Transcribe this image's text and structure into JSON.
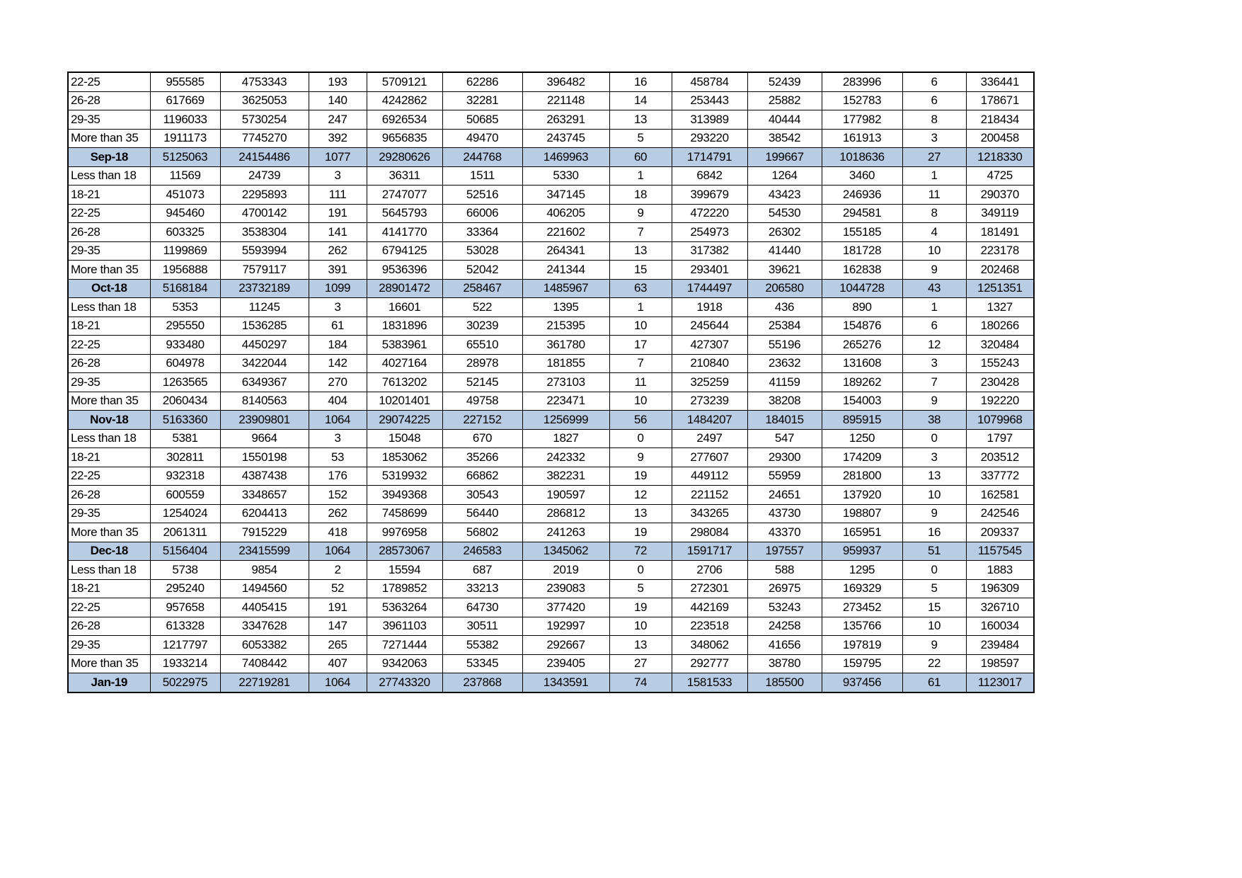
{
  "colors": {
    "month_row_fill": "#b8cce4",
    "border": "#000000"
  },
  "rows": [
    {
      "type": "age",
      "cells": [
        "22-25",
        "955585",
        "4753343",
        "193",
        "5709121",
        "62286",
        "396482",
        "16",
        "458784",
        "52439",
        "283996",
        "6",
        "336441"
      ]
    },
    {
      "type": "age",
      "cells": [
        "26-28",
        "617669",
        "3625053",
        "140",
        "4242862",
        "32281",
        "221148",
        "14",
        "253443",
        "25882",
        "152783",
        "6",
        "178671"
      ]
    },
    {
      "type": "age",
      "cells": [
        "29-35",
        "1196033",
        "5730254",
        "247",
        "6926534",
        "50685",
        "263291",
        "13",
        "313989",
        "40444",
        "177982",
        "8",
        "218434"
      ]
    },
    {
      "type": "age",
      "cells": [
        "More than 35",
        "1911173",
        "7745270",
        "392",
        "9656835",
        "49470",
        "243745",
        "5",
        "293220",
        "38542",
        "161913",
        "3",
        "200458"
      ]
    },
    {
      "type": "month",
      "cells": [
        "Sep-18",
        "5125063",
        "24154486",
        "1077",
        "29280626",
        "244768",
        "1469963",
        "60",
        "1714791",
        "199667",
        "1018636",
        "27",
        "1218330"
      ]
    },
    {
      "type": "age",
      "cells": [
        "Less than 18",
        "11569",
        "24739",
        "3",
        "36311",
        "1511",
        "5330",
        "1",
        "6842",
        "1264",
        "3460",
        "1",
        "4725"
      ]
    },
    {
      "type": "age",
      "cells": [
        "18-21",
        "451073",
        "2295893",
        "111",
        "2747077",
        "52516",
        "347145",
        "18",
        "399679",
        "43423",
        "246936",
        "11",
        "290370"
      ]
    },
    {
      "type": "age",
      "cells": [
        "22-25",
        "945460",
        "4700142",
        "191",
        "5645793",
        "66006",
        "406205",
        "9",
        "472220",
        "54530",
        "294581",
        "8",
        "349119"
      ]
    },
    {
      "type": "age",
      "cells": [
        "26-28",
        "603325",
        "3538304",
        "141",
        "4141770",
        "33364",
        "221602",
        "7",
        "254973",
        "26302",
        "155185",
        "4",
        "181491"
      ]
    },
    {
      "type": "age",
      "cells": [
        "29-35",
        "1199869",
        "5593994",
        "262",
        "6794125",
        "53028",
        "264341",
        "13",
        "317382",
        "41440",
        "181728",
        "10",
        "223178"
      ]
    },
    {
      "type": "age",
      "cells": [
        "More than 35",
        "1956888",
        "7579117",
        "391",
        "9536396",
        "52042",
        "241344",
        "15",
        "293401",
        "39621",
        "162838",
        "9",
        "202468"
      ]
    },
    {
      "type": "month",
      "cells": [
        "Oct-18",
        "5168184",
        "23732189",
        "1099",
        "28901472",
        "258467",
        "1485967",
        "63",
        "1744497",
        "206580",
        "1044728",
        "43",
        "1251351"
      ]
    },
    {
      "type": "age",
      "cells": [
        "Less than 18",
        "5353",
        "11245",
        "3",
        "16601",
        "522",
        "1395",
        "1",
        "1918",
        "436",
        "890",
        "1",
        "1327"
      ]
    },
    {
      "type": "age",
      "cells": [
        "18-21",
        "295550",
        "1536285",
        "61",
        "1831896",
        "30239",
        "215395",
        "10",
        "245644",
        "25384",
        "154876",
        "6",
        "180266"
      ]
    },
    {
      "type": "age",
      "cells": [
        "22-25",
        "933480",
        "4450297",
        "184",
        "5383961",
        "65510",
        "361780",
        "17",
        "427307",
        "55196",
        "265276",
        "12",
        "320484"
      ]
    },
    {
      "type": "age",
      "cells": [
        "26-28",
        "604978",
        "3422044",
        "142",
        "4027164",
        "28978",
        "181855",
        "7",
        "210840",
        "23632",
        "131608",
        "3",
        "155243"
      ]
    },
    {
      "type": "age",
      "cells": [
        "29-35",
        "1263565",
        "6349367",
        "270",
        "7613202",
        "52145",
        "273103",
        "11",
        "325259",
        "41159",
        "189262",
        "7",
        "230428"
      ]
    },
    {
      "type": "age",
      "cells": [
        "More than 35",
        "2060434",
        "8140563",
        "404",
        "10201401",
        "49758",
        "223471",
        "10",
        "273239",
        "38208",
        "154003",
        "9",
        "192220"
      ]
    },
    {
      "type": "month",
      "cells": [
        "Nov-18",
        "5163360",
        "23909801",
        "1064",
        "29074225",
        "227152",
        "1256999",
        "56",
        "1484207",
        "184015",
        "895915",
        "38",
        "1079968"
      ]
    },
    {
      "type": "age",
      "cells": [
        "Less than 18",
        "5381",
        "9664",
        "3",
        "15048",
        "670",
        "1827",
        "0",
        "2497",
        "547",
        "1250",
        "0",
        "1797"
      ]
    },
    {
      "type": "age",
      "cells": [
        "18-21",
        "302811",
        "1550198",
        "53",
        "1853062",
        "35266",
        "242332",
        "9",
        "277607",
        "29300",
        "174209",
        "3",
        "203512"
      ]
    },
    {
      "type": "age",
      "cells": [
        "22-25",
        "932318",
        "4387438",
        "176",
        "5319932",
        "66862",
        "382231",
        "19",
        "449112",
        "55959",
        "281800",
        "13",
        "337772"
      ]
    },
    {
      "type": "age",
      "cells": [
        "26-28",
        "600559",
        "3348657",
        "152",
        "3949368",
        "30543",
        "190597",
        "12",
        "221152",
        "24651",
        "137920",
        "10",
        "162581"
      ]
    },
    {
      "type": "age",
      "cells": [
        "29-35",
        "1254024",
        "6204413",
        "262",
        "7458699",
        "56440",
        "286812",
        "13",
        "343265",
        "43730",
        "198807",
        "9",
        "242546"
      ]
    },
    {
      "type": "age",
      "cells": [
        "More than 35",
        "2061311",
        "7915229",
        "418",
        "9976958",
        "56802",
        "241263",
        "19",
        "298084",
        "43370",
        "165951",
        "16",
        "209337"
      ]
    },
    {
      "type": "month",
      "cells": [
        "Dec-18",
        "5156404",
        "23415599",
        "1064",
        "28573067",
        "246583",
        "1345062",
        "72",
        "1591717",
        "197557",
        "959937",
        "51",
        "1157545"
      ]
    },
    {
      "type": "age",
      "cells": [
        "Less than 18",
        "5738",
        "9854",
        "2",
        "15594",
        "687",
        "2019",
        "0",
        "2706",
        "588",
        "1295",
        "0",
        "1883"
      ]
    },
    {
      "type": "age",
      "cells": [
        "18-21",
        "295240",
        "1494560",
        "52",
        "1789852",
        "33213",
        "239083",
        "5",
        "272301",
        "26975",
        "169329",
        "5",
        "196309"
      ]
    },
    {
      "type": "age",
      "cells": [
        "22-25",
        "957658",
        "4405415",
        "191",
        "5363264",
        "64730",
        "377420",
        "19",
        "442169",
        "53243",
        "273452",
        "15",
        "326710"
      ]
    },
    {
      "type": "age",
      "cells": [
        "26-28",
        "613328",
        "3347628",
        "147",
        "3961103",
        "30511",
        "192997",
        "10",
        "223518",
        "24258",
        "135766",
        "10",
        "160034"
      ]
    },
    {
      "type": "age",
      "cells": [
        "29-35",
        "1217797",
        "6053382",
        "265",
        "7271444",
        "55382",
        "292667",
        "13",
        "348062",
        "41656",
        "197819",
        "9",
        "239484"
      ]
    },
    {
      "type": "age",
      "cells": [
        "More than 35",
        "1933214",
        "7408442",
        "407",
        "9342063",
        "53345",
        "239405",
        "27",
        "292777",
        "38780",
        "159795",
        "22",
        "198597"
      ]
    },
    {
      "type": "month",
      "cells": [
        "Jan-19",
        "5022975",
        "22719281",
        "1064",
        "27743320",
        "237868",
        "1343591",
        "74",
        "1581533",
        "185500",
        "937456",
        "61",
        "1123017"
      ]
    }
  ]
}
